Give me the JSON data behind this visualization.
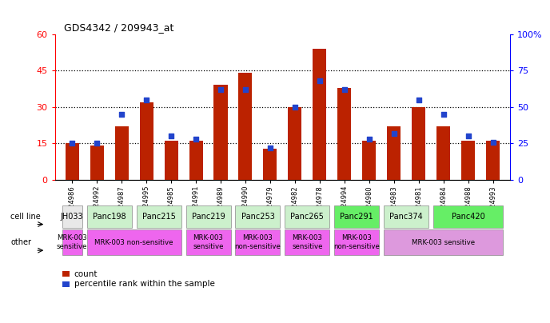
{
  "title": "GDS4342 / 209943_at",
  "samples": [
    "GSM924986",
    "GSM924992",
    "GSM924987",
    "GSM924995",
    "GSM924985",
    "GSM924991",
    "GSM924989",
    "GSM924990",
    "GSM924979",
    "GSM924982",
    "GSM924978",
    "GSM924994",
    "GSM924980",
    "GSM924983",
    "GSM924981",
    "GSM924984",
    "GSM924988",
    "GSM924993"
  ],
  "counts": [
    15,
    14,
    22,
    32,
    16,
    16,
    39,
    44,
    13,
    30,
    54,
    38,
    16,
    22,
    30,
    22,
    16,
    16
  ],
  "percentiles": [
    25,
    25,
    45,
    55,
    30,
    28,
    62,
    62,
    22,
    50,
    68,
    62,
    28,
    32,
    55,
    45,
    30,
    26
  ],
  "cell_lines": [
    {
      "name": "JH033",
      "start": 0,
      "end": 0,
      "color": "#e8e8e8"
    },
    {
      "name": "Panc198",
      "start": 1,
      "end": 2,
      "color": "#ccf0cc"
    },
    {
      "name": "Panc215",
      "start": 3,
      "end": 4,
      "color": "#ccf0cc"
    },
    {
      "name": "Panc219",
      "start": 5,
      "end": 6,
      "color": "#ccf0cc"
    },
    {
      "name": "Panc253",
      "start": 7,
      "end": 8,
      "color": "#ccf0cc"
    },
    {
      "name": "Panc265",
      "start": 9,
      "end": 10,
      "color": "#ccf0cc"
    },
    {
      "name": "Panc291",
      "start": 11,
      "end": 12,
      "color": "#66ee66"
    },
    {
      "name": "Panc374",
      "start": 13,
      "end": 14,
      "color": "#ccf0cc"
    },
    {
      "name": "Panc420",
      "start": 15,
      "end": 17,
      "color": "#66ee66"
    }
  ],
  "other_groups": [
    {
      "label": "MRK-003\nsensitive",
      "start": 0,
      "end": 0,
      "color": "#ee66ee"
    },
    {
      "label": "MRK-003 non-sensitive",
      "start": 1,
      "end": 4,
      "color": "#ee66ee"
    },
    {
      "label": "MRK-003\nsensitive",
      "start": 5,
      "end": 6,
      "color": "#ee66ee"
    },
    {
      "label": "MRK-003\nnon-sensitive",
      "start": 7,
      "end": 8,
      "color": "#ee66ee"
    },
    {
      "label": "MRK-003\nsensitive",
      "start": 9,
      "end": 10,
      "color": "#ee66ee"
    },
    {
      "label": "MRK-003\nnon-sensitive",
      "start": 11,
      "end": 12,
      "color": "#ee66ee"
    },
    {
      "label": "MRK-003 sensitive",
      "start": 13,
      "end": 17,
      "color": "#dd99dd"
    }
  ],
  "bar_color": "#bb2200",
  "dot_color": "#2244cc",
  "ylim_left": [
    0,
    60
  ],
  "ylim_right": [
    0,
    100
  ],
  "yticks_left": [
    0,
    15,
    30,
    45,
    60
  ],
  "ytick_labels_left": [
    "0",
    "15",
    "30",
    "45",
    "60"
  ],
  "yticks_right": [
    0,
    25,
    50,
    75,
    100
  ],
  "ytick_labels_right": [
    "0",
    "25",
    "50",
    "75",
    "100%"
  ],
  "grid_values": [
    15,
    30,
    45
  ],
  "bar_width": 0.55
}
